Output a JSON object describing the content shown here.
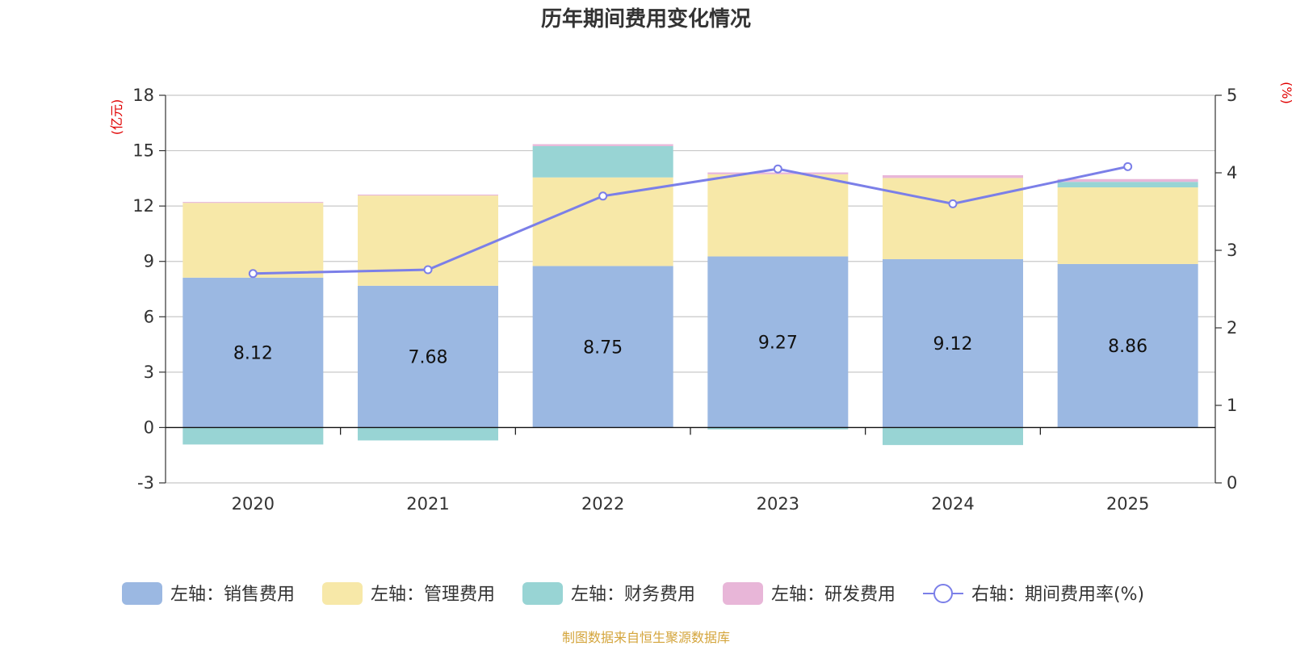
{
  "chart_data": {
    "type": "bar",
    "title": "历年期间费用变化情况",
    "categories": [
      "2020",
      "2021",
      "2022",
      "2023",
      "2024",
      "2025"
    ],
    "left_axis": {
      "unit": "(亿元)",
      "ylim": [
        -3,
        18
      ],
      "ticks": [
        -3,
        0,
        3,
        6,
        9,
        12,
        15,
        18
      ]
    },
    "right_axis": {
      "unit": "(%)",
      "ylim": [
        0,
        5
      ],
      "ticks": [
        0,
        1,
        2,
        3,
        4,
        5
      ]
    },
    "series": [
      {
        "name": "左轴：销售费用",
        "color": "#9bb8e2",
        "values": [
          8.12,
          7.68,
          8.75,
          9.27,
          9.12,
          8.86
        ],
        "show_labels": true
      },
      {
        "name": "左轴：管理费用",
        "color": "#f7e8a8",
        "values": [
          4.05,
          4.89,
          4.8,
          4.45,
          4.4,
          4.15
        ]
      },
      {
        "name": "左轴：财务费用",
        "color": "#98d4d4",
        "values": [
          -0.92,
          -0.7,
          1.7,
          -0.1,
          -0.95,
          0.3
        ]
      },
      {
        "name": "左轴：研发费用",
        "color": "#e8b6d8",
        "values": [
          0.05,
          0.05,
          0.1,
          0.1,
          0.15,
          0.15
        ]
      }
    ],
    "line": {
      "name": "右轴：期间费用率(%)",
      "color": "#7b7fe8",
      "values": [
        2.7,
        2.75,
        3.7,
        4.05,
        3.6,
        4.08
      ]
    },
    "legend_position": "bottom",
    "grid": true
  },
  "source_text": "制图数据来自恒生聚源数据库"
}
